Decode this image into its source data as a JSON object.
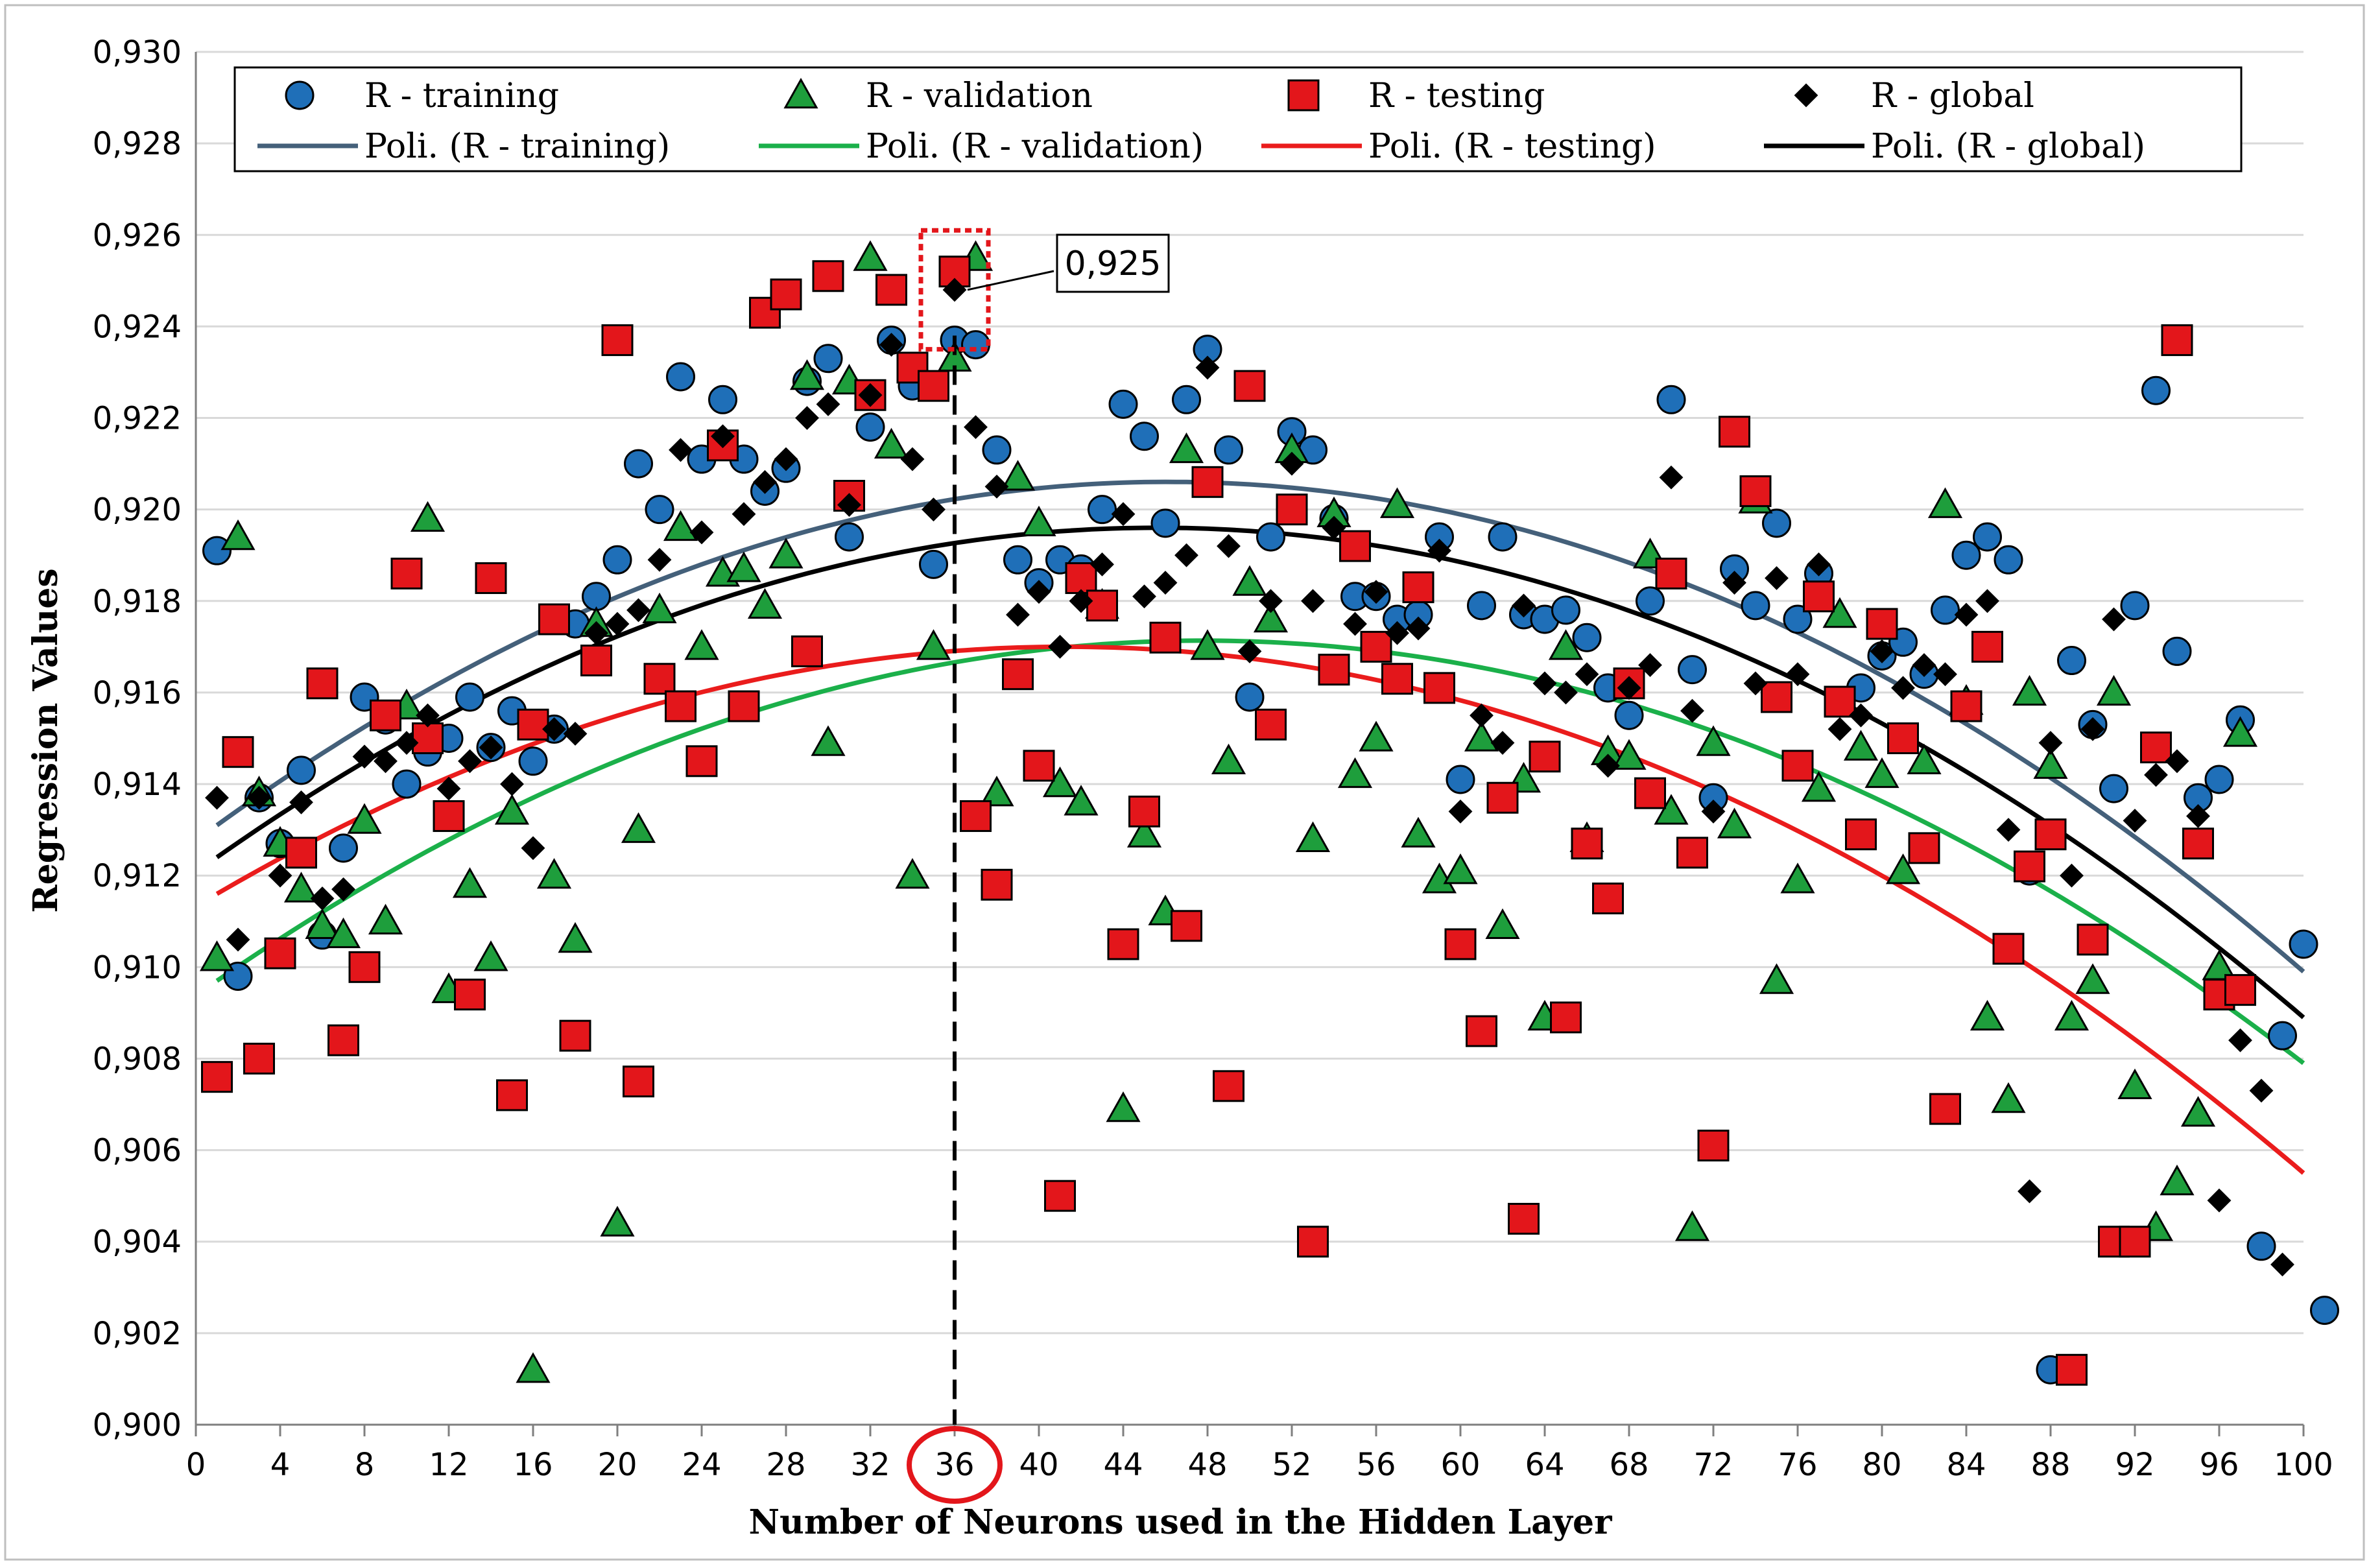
{
  "chart_data": {
    "type": "scatter",
    "title": "",
    "xlabel": "Number of Neurons used in the Hidden Layer",
    "ylabel": "Regression Values",
    "xlim": [
      0,
      100
    ],
    "ylim": [
      0.9,
      0.93
    ],
    "x_ticks": [
      "0",
      "4",
      "8",
      "12",
      "16",
      "20",
      "24",
      "28",
      "32",
      "36",
      "40",
      "44",
      "48",
      "52",
      "56",
      "60",
      "64",
      "68",
      "72",
      "76",
      "80",
      "84",
      "88",
      "92",
      "96",
      "100"
    ],
    "y_ticks": [
      "0,900",
      "0,902",
      "0,904",
      "0,906",
      "0,908",
      "0,910",
      "0,912",
      "0,914",
      "0,916",
      "0,918",
      "0,920",
      "0,922",
      "0,924",
      "0,926",
      "0,928",
      "0,930"
    ],
    "grid": "horizontal",
    "legend_position": "top",
    "highlight": {
      "x": 36,
      "y": 0.925,
      "label": "0,925",
      "x_tick_label": "36"
    },
    "colors": {
      "training": "#1f6fb8",
      "validation": "#1e9e3c",
      "testing": "#e3161b",
      "global": "#000000",
      "poly_training": "#44607a",
      "poly_validation": "#1bb04a",
      "poly_testing": "#ea1c1c",
      "poly_global": "#000000"
    },
    "series": [
      {
        "name": "R - training",
        "marker": "circle",
        "values": [
          0.9191,
          0.9098,
          0.9137,
          0.9127,
          0.9143,
          0.9107,
          0.9126,
          0.9159,
          0.9154,
          0.914,
          0.9147,
          0.915,
          0.9159,
          0.9148,
          0.9156,
          0.9145,
          0.9152,
          0.9175,
          0.9181,
          0.9189,
          0.921,
          0.92,
          0.9229,
          0.9211,
          0.9224,
          0.9211,
          0.9204,
          0.9209,
          0.9228,
          0.9233,
          0.9194,
          0.9218,
          0.9237,
          0.9227,
          0.9188,
          0.9237,
          0.9236,
          0.9213,
          0.9189,
          0.9184,
          0.9189,
          0.9187,
          0.92,
          0.9223,
          0.9216,
          0.9197,
          0.9224,
          0.9235,
          0.9213,
          0.9159,
          0.9194,
          0.9217,
          0.9213,
          0.9198,
          0.9181,
          0.9181,
          0.9176,
          0.9177,
          0.9194,
          0.9141,
          0.9179,
          0.9194,
          0.9177,
          0.9176,
          0.9178,
          0.9172,
          0.9161,
          0.9155,
          0.918,
          0.9224,
          0.9165,
          0.9137,
          0.9187,
          0.9179,
          0.9197,
          0.9176,
          0.9186,
          0.9158,
          0.9161,
          0.9168,
          0.9171,
          0.9164,
          0.9178,
          0.919,
          0.9194,
          0.9189,
          0.9121,
          0.9012,
          0.9167,
          0.9153,
          0.9139,
          0.9179,
          0.9226,
          0.9169,
          0.9137,
          0.9141,
          0.9154,
          0.9039,
          0.9085,
          0.9105,
          0.9025
        ]
      },
      {
        "name": "R - validation",
        "marker": "triangle",
        "values": [
          0.9102,
          0.9194,
          0.9138,
          0.9127,
          0.9117,
          0.9109,
          0.9107,
          0.9132,
          0.911,
          0.9157,
          0.9198,
          0.9095,
          0.9118,
          0.9102,
          0.9134,
          0.9012,
          0.912,
          0.9106,
          0.9175,
          0.9044,
          0.913,
          0.9178,
          0.9196,
          0.917,
          0.9186,
          0.9187,
          0.9179,
          0.919,
          0.9229,
          0.9149,
          0.9228,
          0.9255,
          0.9214,
          0.912,
          0.917,
          0.9233,
          0.9255,
          0.9138,
          0.9207,
          0.9197,
          0.914,
          0.9136,
          0.9179,
          0.9069,
          0.9129,
          0.9112,
          0.9213,
          0.917,
          0.9145,
          0.9184,
          0.9176,
          0.9213,
          0.9128,
          0.9199,
          0.9142,
          0.915,
          0.9201,
          0.9129,
          0.9119,
          0.9121,
          0.915,
          0.9109,
          0.9141,
          0.9089,
          0.917,
          0.9128,
          0.9147,
          0.9146,
          0.919,
          0.9134,
          0.9043,
          0.9149,
          0.9131,
          0.9202,
          0.9097,
          0.9119,
          0.9139,
          0.9177,
          0.9148,
          0.9142,
          0.9121,
          0.9145,
          0.9201,
          0.9158,
          0.9089,
          0.9071,
          0.916,
          0.9144,
          0.9089,
          0.9097,
          0.916,
          0.9074,
          0.9043,
          0.9053,
          0.9068,
          0.91,
          0.9151
        ]
      },
      {
        "name": "R - testing",
        "marker": "square",
        "values": [
          0.9076,
          0.9147,
          0.908,
          0.9103,
          0.9125,
          0.9162,
          0.9084,
          0.91,
          0.9155,
          0.9186,
          0.915,
          0.9133,
          0.9094,
          0.9185,
          0.9072,
          0.9153,
          0.9176,
          0.9085,
          0.9167,
          0.9237,
          0.9075,
          0.9163,
          0.9157,
          0.9145,
          0.9214,
          0.9157,
          0.9243,
          0.9247,
          0.9169,
          0.9251,
          0.9203,
          0.9225,
          0.9248,
          0.9231,
          0.9227,
          0.9252,
          0.9133,
          0.9118,
          0.9164,
          0.9144,
          0.905,
          0.9185,
          0.9179,
          0.9105,
          0.9134,
          0.9172,
          0.9109,
          0.9206,
          0.9074,
          0.9227,
          0.9153,
          0.92,
          0.904,
          0.9165,
          0.9192,
          0.917,
          0.9163,
          0.9183,
          0.9161,
          0.9105,
          0.9086,
          0.9137,
          0.9045,
          0.9146,
          0.9089,
          0.9127,
          0.9115,
          0.9162,
          0.9138,
          0.9186,
          0.9125,
          0.9061,
          0.9217,
          0.9204,
          0.9159,
          0.9144,
          0.9181,
          0.9158,
          0.9129,
          0.9175,
          0.915,
          0.9126,
          0.9069,
          0.9157,
          0.917,
          0.9104,
          0.9122,
          0.9129,
          0.9012,
          0.9106,
          0.904,
          0.904,
          0.9148,
          0.9237,
          0.9127,
          0.9094,
          0.9095
        ]
      },
      {
        "name": "R - global",
        "marker": "diamond",
        "values": [
          0.9137,
          0.9106,
          0.9137,
          0.912,
          0.9136,
          0.9115,
          0.9117,
          0.9146,
          0.9145,
          0.9149,
          0.9155,
          0.9139,
          0.9145,
          0.9148,
          0.914,
          0.9126,
          0.9152,
          0.9151,
          0.9173,
          0.9175,
          0.9178,
          0.9189,
          0.9213,
          0.9195,
          0.9216,
          0.9199,
          0.9206,
          0.9211,
          0.922,
          0.9223,
          0.9201,
          0.9225,
          0.9236,
          0.9211,
          0.92,
          0.9248,
          0.9218,
          0.9205,
          0.9177,
          0.9182,
          0.917,
          0.918,
          0.9188,
          0.9199,
          0.9181,
          0.9184,
          0.919,
          0.9231,
          0.9192,
          0.9169,
          0.918,
          0.921,
          0.918,
          0.9196,
          0.9175,
          0.9182,
          0.9173,
          0.9174,
          0.9191,
          0.9134,
          0.9155,
          0.9149,
          0.9179,
          0.9162,
          0.916,
          0.9164,
          0.9144,
          0.9161,
          0.9166,
          0.9207,
          0.9156,
          0.9134,
          0.9184,
          0.9162,
          0.9185,
          0.9164,
          0.9188,
          0.9152,
          0.9155,
          0.9169,
          0.9161,
          0.9166,
          0.9164,
          0.9177,
          0.918,
          0.913,
          0.9051,
          0.9149,
          0.912,
          0.9152,
          0.9176,
          0.9132,
          0.9142,
          0.9145,
          0.9133,
          0.9049,
          0.9084,
          0.9073,
          0.9035
        ]
      }
    ],
    "fits": [
      {
        "name": "Poli. (R - training)",
        "x0": 1,
        "y0": 0.9131,
        "peak_x": 47,
        "peak_y": 0.9206,
        "x1": 100,
        "y1": 0.9099
      },
      {
        "name": "Poli. (R - validation)",
        "x0": 1,
        "y0": 0.9097,
        "peak_x": 51,
        "peak_y": 0.9171,
        "x1": 100,
        "y1": 0.9079
      },
      {
        "name": "Poli. (R - testing)",
        "x0": 1,
        "y0": 0.9116,
        "peak_x": 41,
        "peak_y": 0.917,
        "x1": 100,
        "y1": 0.9055
      },
      {
        "name": "Poli. (R - global)",
        "x0": 1,
        "y0": 0.9124,
        "peak_x": 46,
        "peak_y": 0.9196,
        "x1": 100,
        "y1": 0.9089
      }
    ]
  }
}
